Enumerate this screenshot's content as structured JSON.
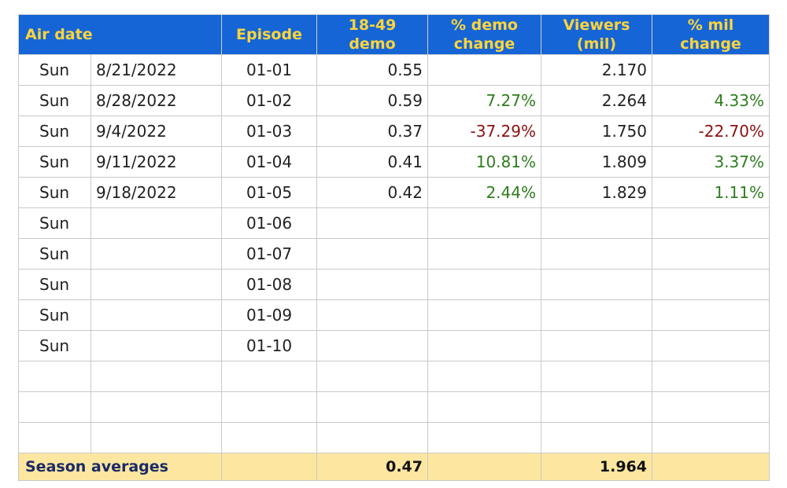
{
  "headers": {
    "air_date": "Air date",
    "episode": "Episode",
    "demo_line1": "18-49",
    "demo_line2": "demo",
    "demo_change_line1": "% demo",
    "demo_change_line2": "change",
    "viewers_line1": "Viewers",
    "viewers_line2": "(mil)",
    "mil_change_line1": "% mil",
    "mil_change_line2": "change"
  },
  "rows": [
    {
      "day": "Sun",
      "date": "8/21/2022",
      "episode": "01-01",
      "demo": "0.55",
      "demo_change": "",
      "demo_change_sign": "",
      "viewers": "2.170",
      "mil_change": "",
      "mil_change_sign": ""
    },
    {
      "day": "Sun",
      "date": "8/28/2022",
      "episode": "01-02",
      "demo": "0.59",
      "demo_change": "7.27%",
      "demo_change_sign": "pos",
      "viewers": "2.264",
      "mil_change": "4.33%",
      "mil_change_sign": "pos"
    },
    {
      "day": "Sun",
      "date": "9/4/2022",
      "episode": "01-03",
      "demo": "0.37",
      "demo_change": "-37.29%",
      "demo_change_sign": "neg",
      "viewers": "1.750",
      "mil_change": "-22.70%",
      "mil_change_sign": "neg"
    },
    {
      "day": "Sun",
      "date": "9/11/2022",
      "episode": "01-04",
      "demo": "0.41",
      "demo_change": "10.81%",
      "demo_change_sign": "pos",
      "viewers": "1.809",
      "mil_change": "3.37%",
      "mil_change_sign": "pos"
    },
    {
      "day": "Sun",
      "date": "9/18/2022",
      "episode": "01-05",
      "demo": "0.42",
      "demo_change": "2.44%",
      "demo_change_sign": "pos",
      "viewers": "1.829",
      "mil_change": "1.11%",
      "mil_change_sign": "pos"
    },
    {
      "day": "Sun",
      "date": "",
      "episode": "01-06",
      "demo": "",
      "demo_change": "",
      "demo_change_sign": "",
      "viewers": "",
      "mil_change": "",
      "mil_change_sign": ""
    },
    {
      "day": "Sun",
      "date": "",
      "episode": "01-07",
      "demo": "",
      "demo_change": "",
      "demo_change_sign": "",
      "viewers": "",
      "mil_change": "",
      "mil_change_sign": ""
    },
    {
      "day": "Sun",
      "date": "",
      "episode": "01-08",
      "demo": "",
      "demo_change": "",
      "demo_change_sign": "",
      "viewers": "",
      "mil_change": "",
      "mil_change_sign": ""
    },
    {
      "day": "Sun",
      "date": "",
      "episode": "01-09",
      "demo": "",
      "demo_change": "",
      "demo_change_sign": "",
      "viewers": "",
      "mil_change": "",
      "mil_change_sign": ""
    },
    {
      "day": "Sun",
      "date": "",
      "episode": "01-10",
      "demo": "",
      "demo_change": "",
      "demo_change_sign": "",
      "viewers": "",
      "mil_change": "",
      "mil_change_sign": ""
    },
    {
      "day": "",
      "date": "",
      "episode": "",
      "demo": "",
      "demo_change": "",
      "demo_change_sign": "",
      "viewers": "",
      "mil_change": "",
      "mil_change_sign": ""
    },
    {
      "day": "",
      "date": "",
      "episode": "",
      "demo": "",
      "demo_change": "",
      "demo_change_sign": "",
      "viewers": "",
      "mil_change": "",
      "mil_change_sign": ""
    },
    {
      "day": "",
      "date": "",
      "episode": "",
      "demo": "",
      "demo_change": "",
      "demo_change_sign": "",
      "viewers": "",
      "mil_change": "",
      "mil_change_sign": ""
    }
  ],
  "footer": {
    "label": "Season averages",
    "demo_avg": "0.47",
    "viewers_avg": "1.964"
  },
  "colors": {
    "header_bg": "#1565d6",
    "header_text": "#ffd43b",
    "positive": "#2e7d1e",
    "negative": "#8b1111",
    "footer_bg": "#fde7a0"
  }
}
